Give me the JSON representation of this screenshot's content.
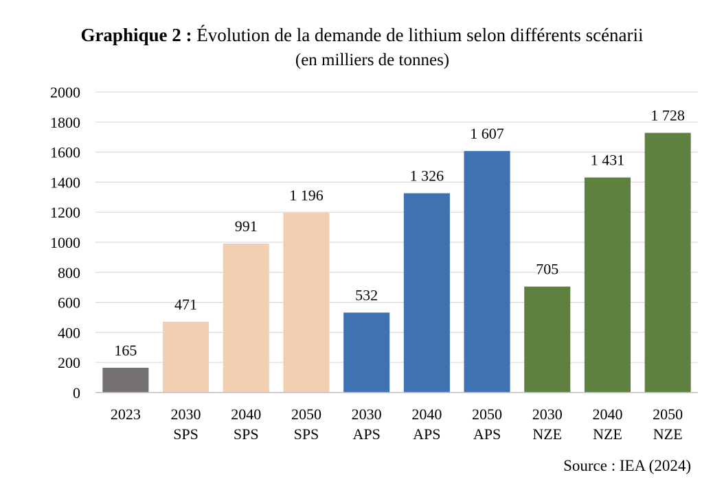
{
  "title": {
    "prefix": "Graphique 2 :",
    "text": "Évolution de la demande de lithium selon différents scénarii",
    "subtitle": "(en milliers de tonnes)"
  },
  "source": "Source : IEA (2024)",
  "colors": {
    "gray": "#767171",
    "peach": "#F2CFB1",
    "blue": "#4172B0",
    "green": "#5E8140",
    "grid": "#D9D9D9",
    "axis": "#BFBFBF"
  },
  "chart_data": {
    "type": "bar",
    "title": "Évolution de la demande de lithium selon différents scénarii",
    "subtitle": "(en milliers de tonnes)",
    "xlabel": "",
    "ylabel": "",
    "ylim": [
      0,
      2000
    ],
    "yticks": [
      0,
      200,
      400,
      600,
      800,
      1000,
      1200,
      1400,
      1600,
      1800,
      2000
    ],
    "grid": true,
    "bars": [
      {
        "year": "2023",
        "scenario": "",
        "value": 165,
        "label": "165",
        "color": "#767171"
      },
      {
        "year": "2030",
        "scenario": "SPS",
        "value": 471,
        "label": "471",
        "color": "#F2CFB1"
      },
      {
        "year": "2040",
        "scenario": "SPS",
        "value": 991,
        "label": "991",
        "color": "#F2CFB1"
      },
      {
        "year": "2050",
        "scenario": "SPS",
        "value": 1196,
        "label": "1 196",
        "color": "#F2CFB1"
      },
      {
        "year": "2030",
        "scenario": "APS",
        "value": 532,
        "label": "532",
        "color": "#4172B0"
      },
      {
        "year": "2040",
        "scenario": "APS",
        "value": 1326,
        "label": "1 326",
        "color": "#4172B0"
      },
      {
        "year": "2050",
        "scenario": "APS",
        "value": 1607,
        "label": "1 607",
        "color": "#4172B0"
      },
      {
        "year": "2030",
        "scenario": "NZE",
        "value": 705,
        "label": "705",
        "color": "#5E8140"
      },
      {
        "year": "2040",
        "scenario": "NZE",
        "value": 1431,
        "label": "1 431",
        "color": "#5E8140"
      },
      {
        "year": "2050",
        "scenario": "NZE",
        "value": 1728,
        "label": "1 728",
        "color": "#5E8140"
      }
    ]
  }
}
